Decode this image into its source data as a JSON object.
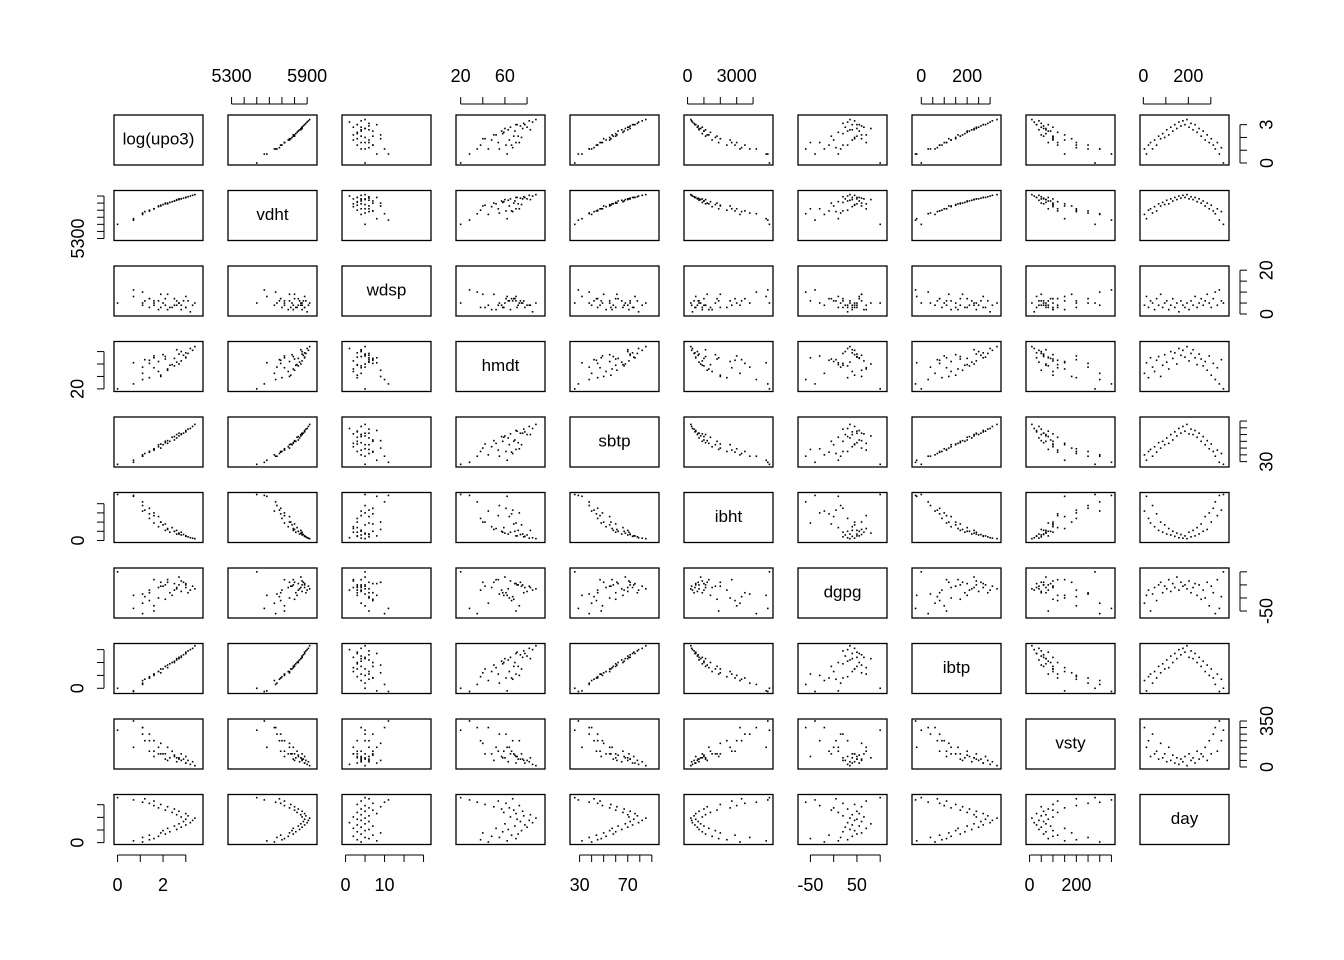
{
  "chart_data": {
    "type": "scatter_matrix",
    "point_color": "#000000",
    "variables": [
      {
        "name": "log(upo3)",
        "lim": [
          0,
          3.6
        ],
        "xticks": [
          0,
          {
            "value": 1,
            "label": null
          },
          2,
          {
            "value": 3,
            "label": null
          }
        ],
        "yticks": [
          0,
          {
            "value": 1,
            "label": null
          },
          {
            "value": 2,
            "label": null
          },
          3
        ],
        "values": [
          1.1,
          0.7,
          1.4,
          1.6,
          1.1,
          1.8,
          1.4,
          2.1,
          1.9,
          2.3,
          2.0,
          2.6,
          2.2,
          2.8,
          2.5,
          3.0,
          2.7,
          3.2,
          2.9,
          3.3,
          3.0,
          3.4,
          2.8,
          3.1,
          2.6,
          3.0,
          2.4,
          2.7,
          2.1,
          2.5,
          1.8,
          2.2,
          1.6,
          1.9,
          1.4,
          1.1,
          1.6,
          0.7,
          1.2,
          0.0
        ]
      },
      {
        "name": "vdht",
        "lim": [
          5300,
          5950
        ],
        "xticks": [
          5300,
          {
            "value": 5400,
            "label": null
          },
          {
            "value": 5500,
            "label": null
          },
          {
            "value": 5600,
            "label": null
          },
          {
            "value": 5700,
            "label": null
          },
          {
            "value": 5800,
            "label": null
          },
          5900
        ],
        "yticks": [
          5300,
          {
            "value": 5400,
            "label": null
          },
          {
            "value": 5500,
            "label": null
          },
          {
            "value": 5600,
            "label": null
          },
          {
            "value": 5700,
            "label": null
          },
          {
            "value": 5800,
            "label": null
          },
          {
            "value": 5900,
            "label": null
          }
        ],
        "values": [
          5640,
          5580,
          5700,
          5720,
          5660,
          5750,
          5690,
          5790,
          5760,
          5810,
          5780,
          5840,
          5790,
          5860,
          5830,
          5880,
          5850,
          5900,
          5870,
          5910,
          5880,
          5920,
          5860,
          5890,
          5850,
          5880,
          5820,
          5860,
          5800,
          5830,
          5760,
          5800,
          5720,
          5770,
          5690,
          5650,
          5720,
          5560,
          5680,
          5500
        ]
      },
      {
        "name": "wdsp",
        "lim": [
          0,
          21
        ],
        "xticks": [
          0,
          {
            "value": 5,
            "label": null
          },
          10,
          {
            "value": 15,
            "label": null
          },
          {
            "value": 20,
            "label": null
          }
        ],
        "yticks": [
          0,
          {
            "value": 5,
            "label": null
          },
          {
            "value": 10,
            "label": null
          },
          {
            "value": 15,
            "label": null
          },
          20
        ],
        "values": [
          4,
          8,
          3,
          6,
          5,
          2,
          7,
          4,
          9,
          3,
          5,
          6,
          2,
          4,
          7,
          3,
          5,
          1,
          6,
          4,
          3,
          5,
          2,
          6,
          4,
          8,
          3,
          5,
          7,
          4,
          6,
          9,
          5,
          3,
          7,
          10,
          4,
          11,
          6,
          5
        ]
      },
      {
        "name": "hmdt",
        "lim": [
          19,
          93
        ],
        "xticks": [
          20,
          {
            "value": 40,
            "label": null
          },
          60,
          {
            "value": 80,
            "label": null
          }
        ],
        "yticks": [
          20,
          {
            "value": 40,
            "label": null
          },
          {
            "value": 60,
            "label": null
          },
          {
            "value": 80,
            "label": null
          }
        ],
        "values": [
          45,
          62,
          38,
          70,
          55,
          48,
          66,
          72,
          40,
          58,
          75,
          63,
          52,
          80,
          69,
          78,
          60,
          85,
          74,
          82,
          71,
          88,
          65,
          77,
          83,
          70,
          59,
          76,
          68,
          57,
          64,
          50,
          73,
          42,
          61,
          35,
          54,
          28,
          67,
          20
        ]
      },
      {
        "name": "sbtp",
        "lim": [
          25,
          93
        ],
        "xticks": [
          30,
          {
            "value": 40,
            "label": null
          },
          {
            "value": 50,
            "label": null
          },
          {
            "value": 60,
            "label": null
          },
          70,
          {
            "value": 80,
            "label": null
          },
          {
            "value": 90,
            "label": null
          }
        ],
        "yticks": [
          30,
          {
            "value": 40,
            "label": null
          },
          {
            "value": 50,
            "label": null
          },
          {
            "value": 60,
            "label": null
          },
          {
            "value": 70,
            "label": null
          },
          {
            "value": 80,
            "label": null
          },
          {
            "value": 90,
            "label": null
          }
        ],
        "values": [
          40,
          32,
          45,
          48,
          38,
          52,
          44,
          58,
          50,
          60,
          55,
          65,
          57,
          70,
          62,
          74,
          68,
          79,
          72,
          82,
          75,
          85,
          71,
          78,
          70,
          76,
          66,
          72,
          60,
          67,
          55,
          61,
          49,
          56,
          45,
          38,
          47,
          29,
          42,
          26
        ]
      },
      {
        "name": "ibht",
        "lim": [
          0,
          5000
        ],
        "xticks": [
          0,
          {
            "value": 1000,
            "label": null
          },
          {
            "value": 2000,
            "label": null
          },
          3000,
          {
            "value": 4000,
            "label": null
          }
        ],
        "yticks": [
          0,
          {
            "value": 1000,
            "label": null
          },
          {
            "value": 2000,
            "label": null
          },
          {
            "value": 3000,
            "label": null
          },
          {
            "value": 4000,
            "label": null
          }
        ],
        "values": [
          3200,
          4800,
          2400,
          1900,
          3800,
          1500,
          2900,
          1100,
          2000,
          900,
          1700,
          700,
          1300,
          600,
          1000,
          450,
          800,
          300,
          650,
          250,
          500,
          200,
          900,
          400,
          1100,
          500,
          1400,
          700,
          1800,
          1000,
          2600,
          1200,
          3000,
          2000,
          3500,
          4200,
          2700,
          4900,
          3300,
          5000
        ]
      },
      {
        "name": "dgpg",
        "lim": [
          -69,
          107
        ],
        "xticks": [
          -50,
          {
            "value": 0,
            "label": null
          },
          50,
          {
            "value": 100,
            "label": null
          }
        ],
        "yticks": [
          -50,
          {
            "value": 0,
            "label": null
          },
          {
            "value": 50,
            "label": null
          },
          {
            "value": 100,
            "label": null
          }
        ],
        "values": [
          -20,
          10,
          30,
          -50,
          15,
          40,
          -10,
          50,
          60,
          20,
          45,
          35,
          70,
          25,
          55,
          40,
          80,
          30,
          60,
          45,
          50,
          35,
          65,
          20,
          40,
          55,
          10,
          50,
          -5,
          30,
          0,
          60,
          -30,
          45,
          20,
          -60,
          70,
          -40,
          5,
          100
        ]
      },
      {
        "name": "ibtp",
        "lim": [
          -25,
          332
        ],
        "xticks": [
          0,
          {
            "value": 50,
            "label": null
          },
          {
            "value": 100,
            "label": null
          },
          {
            "value": 150,
            "label": null
          },
          200,
          {
            "value": 250,
            "label": null
          },
          {
            "value": 300,
            "label": null
          }
        ],
        "yticks": [
          0,
          {
            "value": 100,
            "label": null
          },
          {
            "value": 200,
            "label": null
          },
          {
            "value": 300,
            "label": null
          }
        ],
        "values": [
          60,
          -20,
          90,
          110,
          40,
          130,
          80,
          170,
          120,
          190,
          150,
          220,
          160,
          250,
          200,
          270,
          230,
          300,
          260,
          310,
          280,
          330,
          240,
          290,
          230,
          270,
          200,
          240,
          170,
          210,
          130,
          180,
          100,
          150,
          80,
          30,
          110,
          -25,
          70,
          0
        ]
      },
      {
        "name": "vsty",
        "lim": [
          0,
          350
        ],
        "xticks": [
          0,
          {
            "value": 50,
            "label": null
          },
          {
            "value": 100,
            "label": null
          },
          {
            "value": 150,
            "label": null
          },
          200,
          {
            "value": 250,
            "label": null
          },
          {
            "value": 300,
            "label": null
          },
          {
            "value": 350,
            "label": null
          }
        ],
        "yticks": [
          0,
          {
            "value": 50,
            "label": null
          },
          {
            "value": 100,
            "label": null
          },
          {
            "value": 150,
            "label": null
          },
          {
            "value": 200,
            "label": null
          },
          {
            "value": 250,
            "label": null
          },
          {
            "value": 300,
            "label": null
          },
          350
        ],
        "values": [
          300,
          150,
          200,
          80,
          250,
          100,
          120,
          60,
          180,
          70,
          100,
          40,
          150,
          50,
          90,
          30,
          70,
          20,
          60,
          40,
          80,
          10,
          100,
          50,
          70,
          30,
          120,
          60,
          100,
          80,
          150,
          50,
          200,
          100,
          250,
          300,
          120,
          350,
          200,
          280
        ]
      },
      {
        "name": "day",
        "lim": [
          1,
          365
        ],
        "xticks": [
          0,
          {
            "value": 100,
            "label": null
          },
          200,
          {
            "value": 300,
            "label": null
          }
        ],
        "yticks": [
          0,
          {
            "value": 100,
            "label": null
          },
          {
            "value": 200,
            "label": null
          },
          {
            "value": 300,
            "label": null
          }
        ],
        "values": [
          5,
          14,
          23,
          32,
          41,
          50,
          59,
          68,
          77,
          86,
          95,
          104,
          113,
          122,
          131,
          140,
          149,
          158,
          167,
          176,
          185,
          194,
          203,
          212,
          221,
          230,
          239,
          248,
          257,
          266,
          275,
          284,
          293,
          302,
          311,
          320,
          329,
          338,
          347,
          356
        ]
      }
    ]
  }
}
